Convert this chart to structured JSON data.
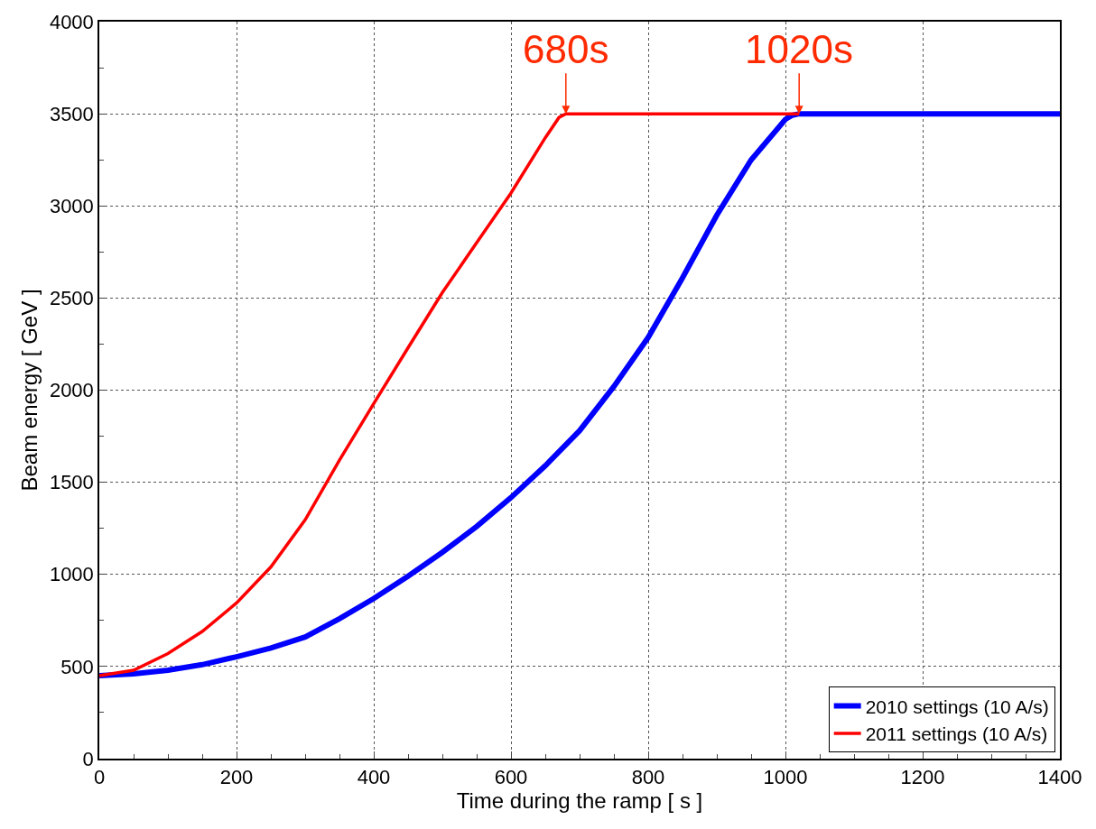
{
  "chart_data": {
    "type": "line",
    "xlabel": "Time during the ramp [ s ]",
    "ylabel": "Beam energy [ GeV ]",
    "series": [
      {
        "name": "2010 settings (10 A/s)",
        "color": "#0000ff",
        "x": [
          0,
          50,
          100,
          150,
          200,
          250,
          300,
          350,
          400,
          450,
          500,
          550,
          600,
          650,
          700,
          750,
          800,
          850,
          900,
          950,
          1000,
          1010,
          1020,
          1100,
          1200,
          1300,
          1400
        ],
        "values": [
          450,
          460,
          480,
          510,
          553,
          600,
          660,
          760,
          869,
          990,
          1120,
          1260,
          1417,
          1590,
          1780,
          2020,
          2286,
          2610,
          2950,
          3250,
          3470,
          3492,
          3500,
          3500,
          3500,
          3500,
          3500
        ]
      },
      {
        "name": "2011 settings (10 A/s)",
        "color": "#ff0000",
        "x": [
          0,
          50,
          100,
          150,
          200,
          250,
          300,
          350,
          400,
          450,
          500,
          550,
          600,
          650,
          670,
          680,
          800,
          1000,
          1020
        ],
        "values": [
          450,
          480,
          570,
          690,
          845,
          1040,
          1296,
          1620,
          1927,
          2230,
          2530,
          2800,
          3070,
          3370,
          3480,
          3500,
          3500,
          3500,
          3500
        ]
      }
    ],
    "annotations": [
      {
        "text": "680s",
        "x": 680,
        "y": 3500
      },
      {
        "text": "1020s",
        "x": 1020,
        "y": 3500
      }
    ],
    "xlim": [
      0,
      1400
    ],
    "xticks": [
      0,
      200,
      400,
      600,
      800,
      1000,
      1200,
      1400
    ],
    "ylim": [
      0,
      4000
    ],
    "yticks": [
      0,
      500,
      1000,
      1500,
      2000,
      2500,
      3000,
      3500,
      4000
    ],
    "grid": true,
    "legend": "bottom right",
    "line_style": "solid",
    "marker": "none"
  }
}
